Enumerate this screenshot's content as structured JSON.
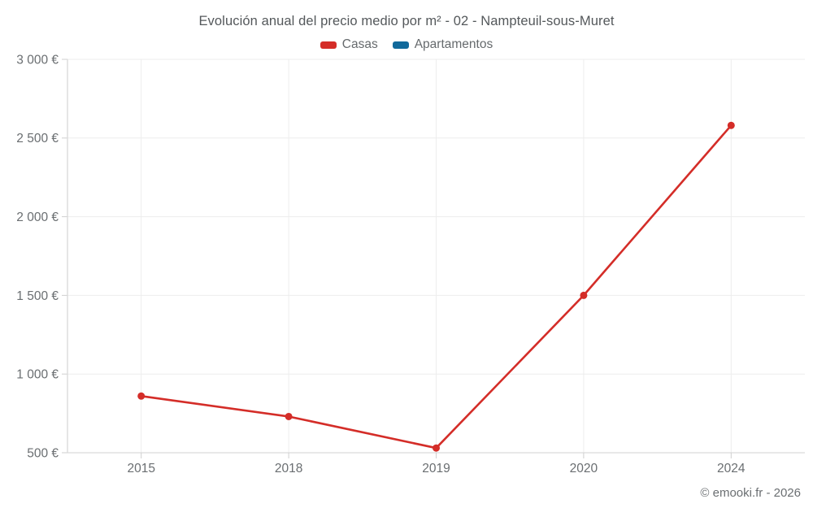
{
  "title": "Evolución anual del precio medio por m² - 02 - Nampteuil-sous-Muret",
  "footer": "© emooki.fr - 2026",
  "legend": [
    {
      "label": "Casas",
      "color": "#d42d28"
    },
    {
      "label": "Apartamentos",
      "color": "#11699b"
    }
  ],
  "colors": {
    "casas": "#d42d28",
    "apartamentos": "#11699b",
    "grid": "#ededed",
    "axis": "#d9d9d9",
    "tick": "#cfcfcf",
    "tick_label": "#6a6e71"
  },
  "chart_data": {
    "type": "line",
    "title": "Evolución anual del precio medio por m² - 02 - Nampteuil-sous-Muret",
    "categories": [
      "2015",
      "2018",
      "2019",
      "2020",
      "2024"
    ],
    "series": [
      {
        "name": "Casas",
        "color": "#d42d28",
        "values": [
          860,
          730,
          530,
          1500,
          2580
        ]
      },
      {
        "name": "Apartamentos",
        "color": "#11699b",
        "values": []
      }
    ],
    "xlabel": "",
    "ylabel": "",
    "ylim": [
      500,
      3000
    ],
    "ytick_step": 500,
    "ytick_labels": [
      "500 €",
      "1 000 €",
      "1 500 €",
      "2 000 €",
      "2 500 €",
      "3 000 €"
    ],
    "grid": true,
    "legend_position": "top",
    "currency_suffix": " €"
  }
}
